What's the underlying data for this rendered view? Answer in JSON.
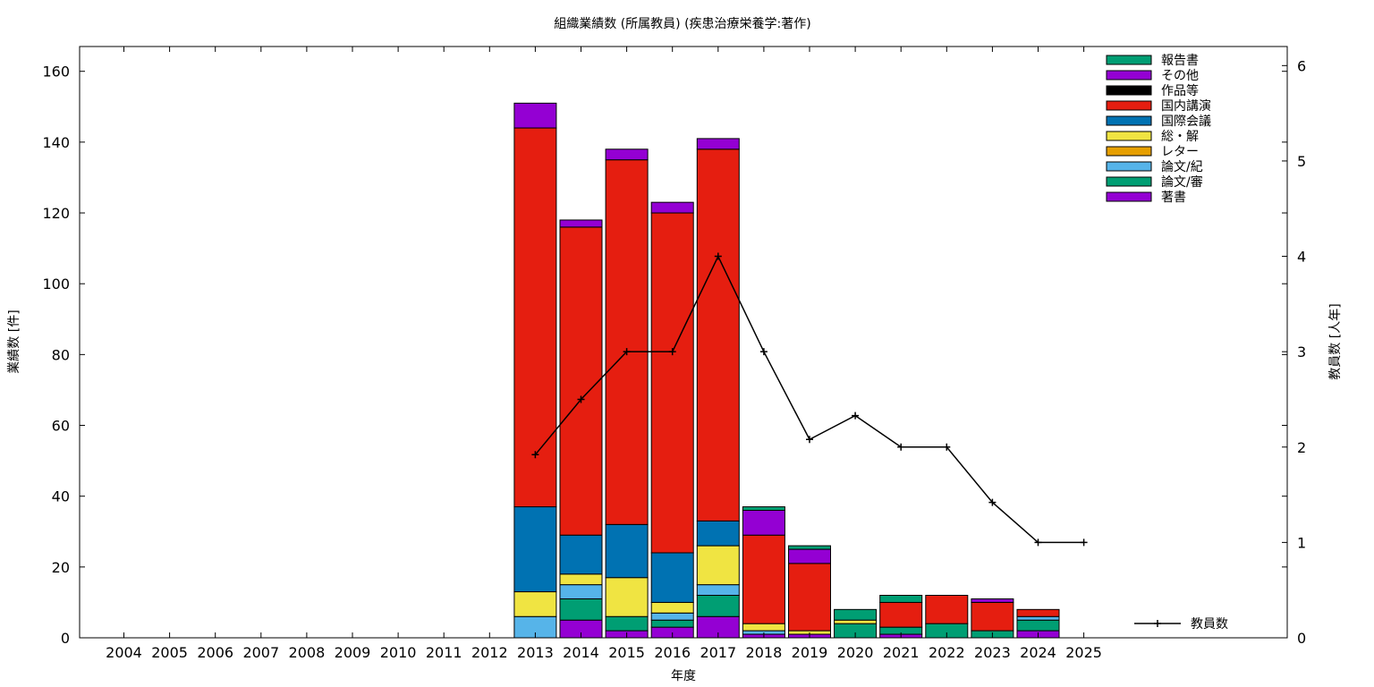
{
  "chart_data": {
    "type": "bar",
    "title": "組織業績数 (所属教員) (疾患治療栄養学:著作)",
    "xlabel": "年度",
    "ylabel": "業績数 [件]",
    "y2label": "教員数 [人年]",
    "ylim": [
      0,
      167
    ],
    "y2lim": [
      0,
      6.2
    ],
    "yticks": [
      "0",
      "20",
      "40",
      "60",
      "80",
      "100",
      "120",
      "140",
      "160"
    ],
    "y2ticks": [
      "0",
      "1",
      "2",
      "3",
      "4",
      "5",
      "6"
    ],
    "categories": [
      "2004",
      "2005",
      "2006",
      "2007",
      "2008",
      "2009",
      "2010",
      "2011",
      "2012",
      "2013",
      "2014",
      "2015",
      "2016",
      "2017",
      "2018",
      "2019",
      "2020",
      "2021",
      "2022",
      "2023",
      "2024",
      "2025"
    ],
    "stacked": true,
    "legend_position": "top-right",
    "series": [
      {
        "name": "著書",
        "color": "#9400d3",
        "values": [
          0,
          0,
          0,
          0,
          0,
          0,
          0,
          0,
          0,
          0,
          5,
          2,
          3,
          6,
          1,
          1,
          0,
          1,
          0,
          0,
          2,
          0
        ]
      },
      {
        "name": "論文/審",
        "color": "#009e73",
        "values": [
          0,
          0,
          0,
          0,
          0,
          0,
          0,
          0,
          0,
          0,
          6,
          4,
          2,
          6,
          0,
          0,
          4,
          2,
          4,
          2,
          3,
          0
        ]
      },
      {
        "name": "論文/紀",
        "color": "#56b4e9",
        "values": [
          0,
          0,
          0,
          0,
          0,
          0,
          0,
          0,
          0,
          6,
          4,
          0,
          2,
          3,
          1,
          0,
          0,
          0,
          0,
          0,
          1,
          0
        ]
      },
      {
        "name": "レター",
        "color": "#e69f00",
        "values": [
          0,
          0,
          0,
          0,
          0,
          0,
          0,
          0,
          0,
          0,
          0,
          0,
          0,
          0,
          0,
          0,
          0,
          0,
          0,
          0,
          0,
          0
        ]
      },
      {
        "name": "総・解",
        "color": "#f0e442",
        "values": [
          0,
          0,
          0,
          0,
          0,
          0,
          0,
          0,
          0,
          7,
          3,
          11,
          3,
          11,
          2,
          1,
          1,
          0,
          0,
          0,
          0,
          0
        ]
      },
      {
        "name": "国際会議",
        "color": "#0072b2",
        "values": [
          0,
          0,
          0,
          0,
          0,
          0,
          0,
          0,
          0,
          24,
          11,
          15,
          14,
          7,
          0,
          0,
          0,
          0,
          0,
          0,
          0,
          0
        ]
      },
      {
        "name": "国内講演",
        "color": "#e51e10",
        "values": [
          0,
          0,
          0,
          0,
          0,
          0,
          0,
          0,
          0,
          107,
          87,
          103,
          96,
          105,
          25,
          19,
          0,
          7,
          8,
          8,
          2,
          0
        ]
      },
      {
        "name": "作品等",
        "color": "#000000",
        "values": [
          0,
          0,
          0,
          0,
          0,
          0,
          0,
          0,
          0,
          0,
          0,
          0,
          0,
          0,
          0,
          0,
          0,
          0,
          0,
          0,
          0,
          0
        ]
      },
      {
        "name": "その他",
        "color": "#9400d3",
        "values": [
          0,
          0,
          0,
          0,
          0,
          0,
          0,
          0,
          0,
          7,
          2,
          3,
          3,
          3,
          7,
          4,
          0,
          0,
          0,
          1,
          0,
          0
        ]
      },
      {
        "name": "報告書",
        "color": "#009e73",
        "values": [
          0,
          0,
          0,
          0,
          0,
          0,
          0,
          0,
          0,
          0,
          0,
          0,
          0,
          0,
          1,
          1,
          3,
          2,
          0,
          0,
          0,
          0
        ]
      }
    ],
    "line": {
      "name": "教員数",
      "color": "#000000",
      "axis": "y2",
      "x": [
        "2013",
        "2014",
        "2015",
        "2016",
        "2017",
        "2018",
        "2019",
        "2020",
        "2021",
        "2022",
        "2023",
        "2024",
        "2025"
      ],
      "values": [
        1.92,
        2.5,
        3.0,
        3.0,
        4.0,
        3.0,
        2.08,
        2.33,
        2.0,
        2.0,
        1.42,
        1.0,
        1.0
      ]
    }
  }
}
